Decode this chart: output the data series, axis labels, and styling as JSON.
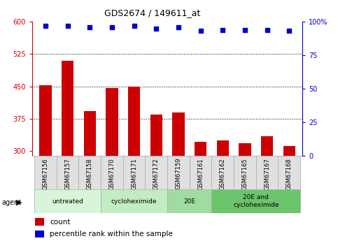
{
  "title": "GDS2674 / 149611_at",
  "samples": [
    "GSM67156",
    "GSM67157",
    "GSM67158",
    "GSM67170",
    "GSM67171",
    "GSM67172",
    "GSM67159",
    "GSM67161",
    "GSM67162",
    "GSM67165",
    "GSM67167",
    "GSM67168"
  ],
  "counts": [
    452,
    510,
    393,
    447,
    449,
    385,
    390,
    322,
    325,
    318,
    335,
    312
  ],
  "percentiles": [
    97,
    97,
    96,
    96,
    97,
    95,
    96,
    93,
    94,
    94,
    94,
    93
  ],
  "ylim_left": [
    290,
    600
  ],
  "ylim_right": [
    0,
    100
  ],
  "yticks_left": [
    300,
    375,
    450,
    525,
    600
  ],
  "yticks_right": [
    0,
    25,
    50,
    75,
    100
  ],
  "bar_color": "#cc0000",
  "dot_color": "#0000cc",
  "background_color": "#ffffff",
  "agent_groups": [
    {
      "label": "untreated",
      "start": 0,
      "end": 3,
      "color": "#d9f5d9"
    },
    {
      "label": "cycloheximide",
      "start": 3,
      "end": 6,
      "color": "#c2ecc2"
    },
    {
      "label": "20E",
      "start": 6,
      "end": 8,
      "color": "#a0dba0"
    },
    {
      "label": "20E and\ncycloheximide",
      "start": 8,
      "end": 12,
      "color": "#6cc46c"
    }
  ],
  "left_axis_color": "#cc0000",
  "right_axis_color": "#0000cc",
  "tick_fontsize": 7,
  "title_fontsize": 9
}
